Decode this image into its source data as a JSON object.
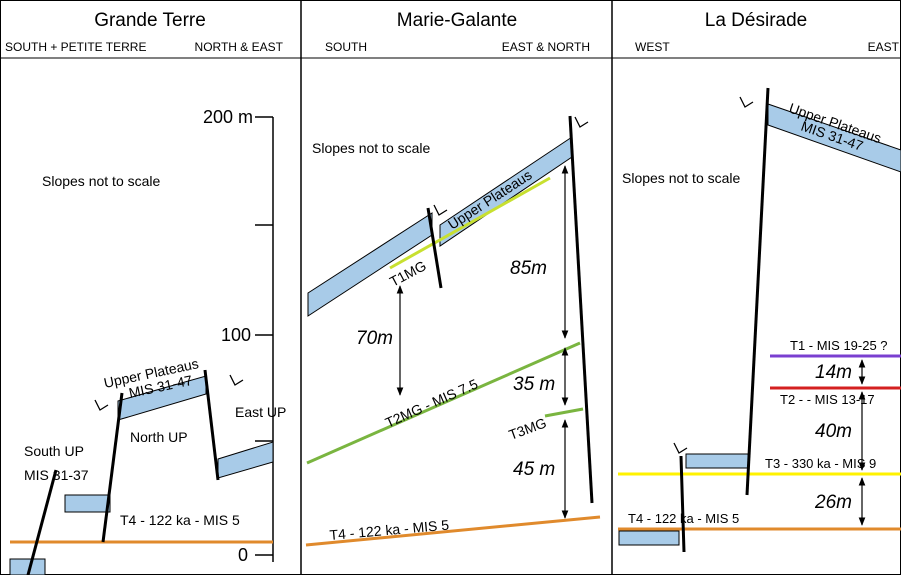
{
  "panels": [
    {
      "title": "Grande Terre",
      "left": "SOUTH + PETITE TERRE",
      "right": "NORTH & EAST",
      "note": "Slopes not to scale",
      "scale": [
        "200 m",
        "100",
        "0"
      ],
      "labels": [
        "South UP",
        "MIS 31-37",
        "T4 - 122 ka - MIS 5",
        "North UP",
        "East UP",
        "Upper Plateaus",
        "MIS 31-47"
      ]
    },
    {
      "title": "Marie-Galante",
      "left": "SOUTH",
      "right": "EAST & NORTH",
      "note": "Slopes not to scale",
      "labels": [
        "Upper Plateaus",
        "T1MG",
        "T2MG  - MIS 7.5",
        "T3MG",
        "T4  - 122 ka - MIS 5"
      ],
      "heights": [
        "70m",
        "85m",
        "35 m",
        "45 m"
      ]
    },
    {
      "title": "La Désirade",
      "left": "WEST",
      "right": "EAST",
      "note": "Slopes not to scale",
      "labels": [
        "Upper Plateaus",
        "MIS 31-47",
        "T1 - MIS 19-25 ?",
        "T2 - - MIS 13-17",
        "T3 - 330  ka - MIS 9",
        "T4 - 122 ka - MIS 5"
      ],
      "heights": [
        "14m",
        "40m",
        "26m"
      ]
    }
  ]
}
